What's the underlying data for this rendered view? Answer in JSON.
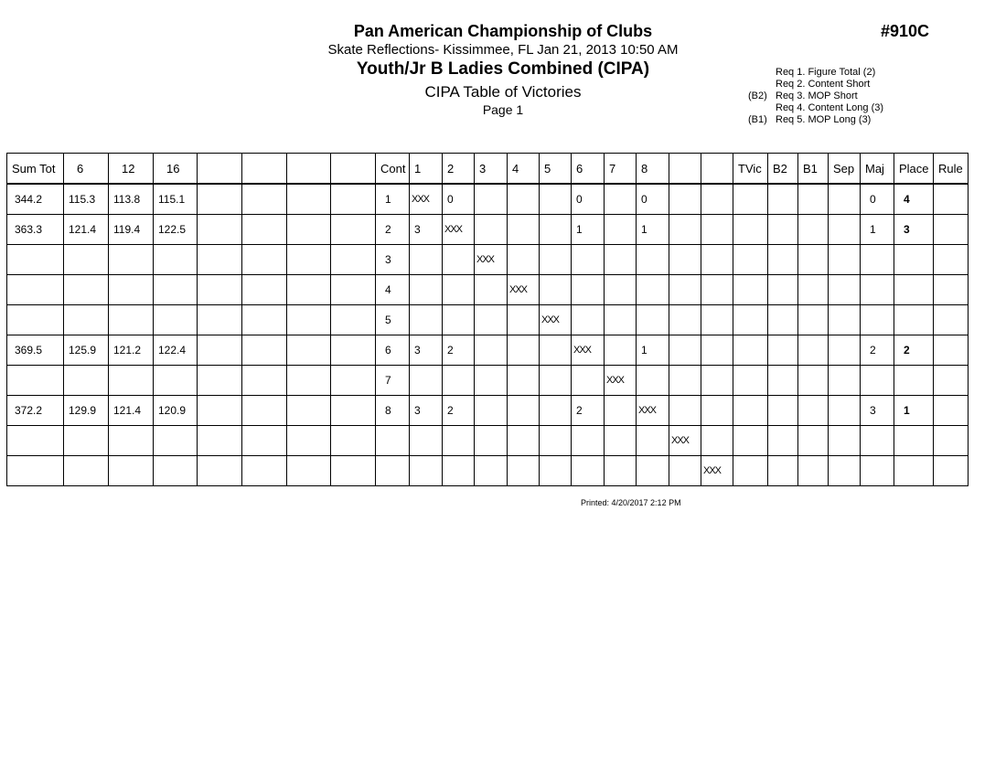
{
  "header": {
    "title": "Pan American Championship of Clubs",
    "event_number": "#910C",
    "subtitle": "Skate Reflections- Kissimmee, FL  Jan 21, 2013  10:50 AM",
    "event_name": "Youth/Jr B Ladies Combined (CIPA)",
    "report_name": "CIPA Table of Victories",
    "page": "Page 1"
  },
  "requirements": [
    {
      "prefix": "",
      "text": "Req  1.  Figure Total (2)"
    },
    {
      "prefix": "",
      "text": "Req  2.  Content Short"
    },
    {
      "prefix": "(B2)",
      "text": "Req  3.  MOP Short"
    },
    {
      "prefix": "",
      "text": "Req  4.  Content Long (3)"
    },
    {
      "prefix": "(B1)",
      "text": "Req  5.  MOP Long (3)"
    }
  ],
  "table": {
    "columns": [
      "Sum Tot",
      "6",
      "12",
      "16",
      "",
      "",
      "",
      "",
      "Cont",
      "1",
      "2",
      "3",
      "4",
      "5",
      "6",
      "7",
      "8",
      "",
      "",
      "TVic",
      "B2",
      "B1",
      "Sep",
      "Maj",
      "Place",
      "Rule"
    ],
    "rows": [
      [
        "344.2",
        "115.3",
        "113.8",
        "115.1",
        "",
        "",
        "",
        "",
        "1",
        "XXX",
        "0",
        "",
        "",
        "",
        "0",
        "",
        "0",
        "",
        "",
        "",
        "",
        "",
        "",
        "0",
        "4",
        ""
      ],
      [
        "363.3",
        "121.4",
        "119.4",
        "122.5",
        "",
        "",
        "",
        "",
        "2",
        "3",
        "XXX",
        "",
        "",
        "",
        "1",
        "",
        "1",
        "",
        "",
        "",
        "",
        "",
        "",
        "1",
        "3",
        ""
      ],
      [
        "",
        "",
        "",
        "",
        "",
        "",
        "",
        "",
        "3",
        "",
        "",
        "XXX",
        "",
        "",
        "",
        "",
        "",
        "",
        "",
        "",
        "",
        "",
        "",
        "",
        "",
        ""
      ],
      [
        "",
        "",
        "",
        "",
        "",
        "",
        "",
        "",
        "4",
        "",
        "",
        "",
        "XXX",
        "",
        "",
        "",
        "",
        "",
        "",
        "",
        "",
        "",
        "",
        "",
        "",
        ""
      ],
      [
        "",
        "",
        "",
        "",
        "",
        "",
        "",
        "",
        "5",
        "",
        "",
        "",
        "",
        "XXX",
        "",
        "",
        "",
        "",
        "",
        "",
        "",
        "",
        "",
        "",
        "",
        ""
      ],
      [
        "369.5",
        "125.9",
        "121.2",
        "122.4",
        "",
        "",
        "",
        "",
        "6",
        "3",
        "2",
        "",
        "",
        "",
        "XXX",
        "",
        "1",
        "",
        "",
        "",
        "",
        "",
        "",
        "2",
        "2",
        ""
      ],
      [
        "",
        "",
        "",
        "",
        "",
        "",
        "",
        "",
        "7",
        "",
        "",
        "",
        "",
        "",
        "",
        "XXX",
        "",
        "",
        "",
        "",
        "",
        "",
        "",
        "",
        "",
        ""
      ],
      [
        "372.2",
        "129.9",
        "121.4",
        "120.9",
        "",
        "",
        "",
        "",
        "8",
        "3",
        "2",
        "",
        "",
        "",
        "2",
        "",
        "XXX",
        "",
        "",
        "",
        "",
        "",
        "",
        "3",
        "1",
        ""
      ],
      [
        "",
        "",
        "",
        "",
        "",
        "",
        "",
        "",
        "",
        "",
        "",
        "",
        "",
        "",
        "",
        "",
        "",
        "XXX",
        "",
        "",
        "",
        "",
        "",
        "",
        "",
        ""
      ],
      [
        "",
        "",
        "",
        "",
        "",
        "",
        "",
        "",
        "",
        "",
        "",
        "",
        "",
        "",
        "",
        "",
        "",
        "",
        "XXX",
        "",
        "",
        "",
        "",
        "",
        "",
        ""
      ]
    ]
  },
  "footer": {
    "printed": "Printed:  4/20/2017  2:12 PM"
  }
}
